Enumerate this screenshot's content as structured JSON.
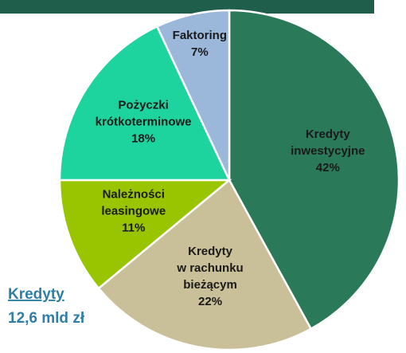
{
  "chart_data": {
    "type": "pie",
    "categories": [
      "Kredyty\ninwestycyjne",
      "Kredyty\nw rachunku\nbieżącym",
      "Należności\nleasingowe",
      "Pożyczki\nkrótkoterminowe",
      "Faktoring"
    ],
    "values": [
      42,
      22,
      11,
      18,
      7
    ],
    "value_labels": [
      "42%",
      "22%",
      "11%",
      "18%",
      "7%"
    ],
    "colors": [
      "#2a7a5a",
      "#c9bf98",
      "#99c400",
      "#1dd39e",
      "#9bb7d9"
    ],
    "annotations": [
      "Kredyty",
      "12,6 mld zł"
    ]
  }
}
